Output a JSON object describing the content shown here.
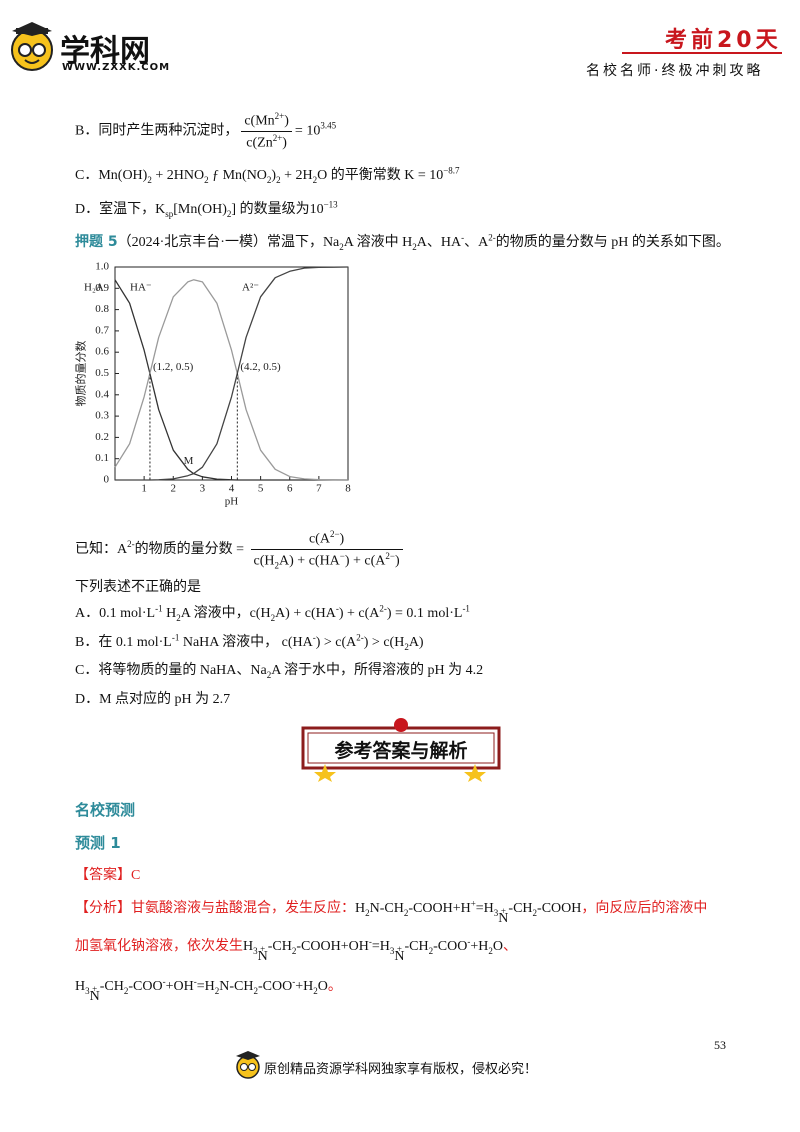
{
  "header": {
    "logo": "学科网",
    "url": "WWW.ZXXK.COM",
    "series": "考前20天",
    "slogan": "名校名师·终极冲刺攻略"
  },
  "prev_options": [
    [
      "B．同时产生两种沉淀时，",
      {
        "frac": {
          "num": [
            "c(Mn",
            {
              "sup": "2+"
            },
            ")"
          ],
          "den": [
            "c(Zn",
            {
              "sup": "2+"
            },
            ")"
          ]
        }
      },
      "= 10",
      {
        "sup": "3.45"
      }
    ],
    [
      "C．Mn(OH)",
      {
        "sub": "2"
      },
      " + 2HNO",
      {
        "sub": "2"
      },
      " ƒ  Mn(NO",
      {
        "sub": "2"
      },
      ")",
      {
        "sub": "2"
      },
      " + 2H",
      {
        "sub": "2"
      },
      "O 的平衡常数 K = 10",
      {
        "sup": "−8.7"
      }
    ],
    [
      "D．室温下，K",
      {
        "sub": "sp"
      },
      "[Mn(OH)",
      {
        "sub": "2"
      },
      "] 的数量级为10",
      {
        "sup": "−13"
      }
    ]
  ],
  "question": {
    "label": "押题 5",
    "text": [
      "（2024·北京丰台·一模）常温下，Na",
      {
        "sub": "2"
      },
      "A 溶液中 H",
      {
        "sub": "2"
      },
      "A、HA",
      {
        "sup": "-"
      },
      "、A",
      {
        "sup": "2-"
      },
      "的物质的量分数与 pH 的关系如下图。"
    ]
  },
  "chart_data": {
    "type": "line",
    "x_label": "pH",
    "y_label": "物质的量分数",
    "x": [
      0,
      0.5,
      1,
      1.2,
      1.5,
      2,
      2.5,
      2.7,
      3,
      3.5,
      4,
      4.2,
      4.5,
      5,
      5.5,
      6,
      6.5,
      7,
      7.5,
      8
    ],
    "series": [
      {
        "name": "H₂A",
        "color": "#333333",
        "values": [
          0.94,
          0.83,
          0.61,
          0.5,
          0.33,
          0.14,
          0.05,
          0.03,
          0.015,
          0.004,
          0.001,
          0,
          0,
          0,
          0,
          0,
          0,
          0,
          0,
          0
        ]
      },
      {
        "name": "HA⁻",
        "color": "#9a9a9a",
        "values": [
          0.06,
          0.17,
          0.39,
          0.5,
          0.67,
          0.86,
          0.93,
          0.94,
          0.93,
          0.83,
          0.61,
          0.5,
          0.33,
          0.14,
          0.05,
          0.016,
          0.005,
          0.002,
          0.001,
          0
        ]
      },
      {
        "name": "A²⁻",
        "color": "#444444",
        "values": [
          0,
          0,
          0,
          0,
          0.001,
          0.005,
          0.02,
          0.03,
          0.06,
          0.17,
          0.39,
          0.5,
          0.67,
          0.86,
          0.95,
          0.98,
          0.995,
          0.998,
          0.999,
          1
        ]
      }
    ],
    "annotations": [
      {
        "x": 1.2,
        "y": 0.5,
        "label": "(1.2, 0.5)",
        "dropline": true
      },
      {
        "x": 4.2,
        "y": 0.5,
        "label": "(4.2, 0.5)",
        "dropline": true
      },
      {
        "x": 2.7,
        "y": 0.03,
        "label": "M",
        "dropline": false
      }
    ],
    "xlim": [
      0,
      8
    ],
    "ylim": [
      0,
      1
    ],
    "xticks": [
      1,
      2,
      3,
      4,
      5,
      6,
      7,
      8
    ],
    "yticks": [
      0,
      0.1,
      0.2,
      0.3,
      0.4,
      0.5,
      0.6,
      0.7,
      0.8,
      0.9,
      {
        "value": 1,
        "label": "1.0"
      }
    ]
  },
  "known": [
    "已知：A",
    {
      "sup": "2-"
    },
    "的物质的量分数 = ",
    {
      "frac": {
        "num": [
          "c(A",
          {
            "sup": "2−"
          },
          ")"
        ],
        "den": [
          "c(H",
          {
            "sub": "2"
          },
          "A) + c(HA",
          {
            "sup": "−"
          },
          ") + c(A",
          {
            "sup": "2−"
          },
          ")"
        ]
      }
    }
  ],
  "prompt": "下列表述不正确的是",
  "choices": [
    [
      "A．0.1 mol·L",
      {
        "sup": "-1"
      },
      " H",
      {
        "sub": "2"
      },
      "A 溶液中，c(H",
      {
        "sub": "2"
      },
      "A) + c(HA",
      {
        "sup": "-"
      },
      ") + c(A",
      {
        "sup": "2-"
      },
      ") = 0.1 mol·L",
      {
        "sup": "-1"
      }
    ],
    [
      "B．在 0.1 mol·L",
      {
        "sup": "-1"
      },
      " NaHA 溶液中，  c(HA",
      {
        "sup": "-"
      },
      ") > c(A",
      {
        "sup": "2-"
      },
      ") > c(H",
      {
        "sub": "2"
      },
      "A)"
    ],
    [
      "C．将等物质的量的 NaHA、Na",
      {
        "sub": "2"
      },
      "A 溶于水中，所得溶液的 pH 为 4.2"
    ],
    [
      "D．M 点对应的 pH 为 2.7"
    ]
  ],
  "banner": "参考答案与解析",
  "section": {
    "title": "名校预测",
    "sub": "预测 1",
    "answer_label": "【答案】",
    "answer": "C",
    "analysis": [
      [
        {
          "color": "#e02020",
          "runs": [
            "【分析】甘氨酸溶液与盐酸混合，发生反应："
          ]
        },
        {
          "color": "#111111",
          "runs": [
            "H",
            {
              "sub": "2"
            },
            "N-CH",
            {
              "sub": "2"
            },
            "-COOH+H",
            {
              "sup": "+"
            },
            "=H",
            {
              "sub": "3"
            },
            {
              "top": "+",
              "base": "N"
            },
            "-CH",
            {
              "sub": "2"
            },
            "-COOH"
          ]
        },
        {
          "color": "#e02020",
          "runs": [
            "，向反应后的溶液中"
          ]
        }
      ],
      [
        {
          "color": "#e02020",
          "runs": [
            "加氢氧化钠溶液，依次发生"
          ]
        },
        {
          "color": "#111111",
          "runs": [
            "H",
            {
              "sub": "3"
            },
            {
              "top": "+",
              "base": "N"
            },
            "-CH",
            {
              "sub": "2"
            },
            "-COOH+OH",
            {
              "sup": "-"
            },
            "=H",
            {
              "sub": "3"
            },
            {
              "top": "+",
              "base": "N"
            },
            "-CH",
            {
              "sub": "2"
            },
            "-COO",
            {
              "sup": "-"
            },
            "+H",
            {
              "sub": "2"
            },
            "O"
          ]
        },
        {
          "color": "#e02020",
          "runs": [
            "、"
          ]
        }
      ],
      [
        {
          "color": "#111111",
          "runs": [
            "H",
            {
              "sub": "3"
            },
            {
              "top": "+",
              "base": "N"
            },
            "-CH",
            {
              "sub": "2"
            },
            "-COO",
            {
              "sup": "-"
            },
            "+OH",
            {
              "sup": "-"
            },
            "=H",
            {
              "sub": "2"
            },
            "N-CH",
            {
              "sub": "2"
            },
            "-COO",
            {
              "sup": "-"
            },
            "+H",
            {
              "sub": "2"
            },
            "O"
          ]
        },
        {
          "color": "#e02020",
          "runs": [
            "。"
          ]
        }
      ]
    ]
  },
  "page_number": "53",
  "footer": "原创精品资源学科网独家享有版权，侵权必究！"
}
